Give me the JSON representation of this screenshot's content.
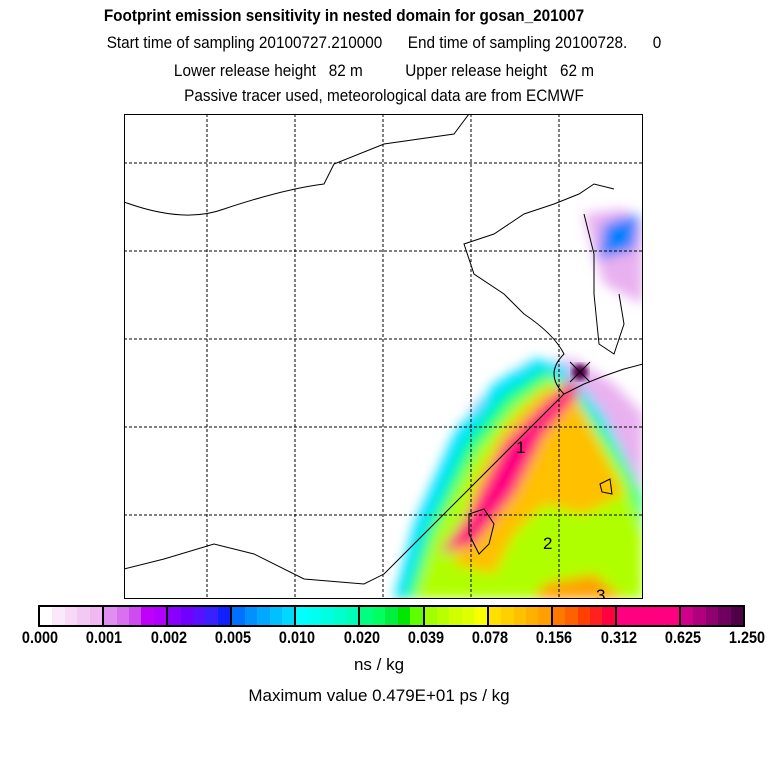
{
  "header": {
    "title": "Footprint emission sensitivity in nested domain for gosan_201007",
    "sampling": "Start time of sampling 20100727.210000      End time of sampling 20100728.      0",
    "release": "Lower release height   82 m          Upper release height   62 m",
    "tracer": "Passive tracer used, meteorological data are from ECMWF"
  },
  "map": {
    "contour_labels": [
      "1",
      "2",
      "3"
    ]
  },
  "colorbar": {
    "ticks": [
      "0.000",
      "0.001",
      "0.002",
      "0.005",
      "0.010",
      "0.020",
      "0.039",
      "0.078",
      "0.156",
      "0.312",
      "0.625",
      "1.250"
    ],
    "segments": [
      [
        "#ffffff",
        "#fbe8fb",
        "#f7d8f7",
        "#f3c8f3",
        "#efb8ef"
      ],
      [
        "#e08ff0",
        "#d870f0",
        "#cc4cf0",
        "#c000f8",
        "#b000ff"
      ],
      [
        "#8a00ff",
        "#7000ff",
        "#5a10ff",
        "#3a20ff",
        "#1020ff"
      ],
      [
        "#0070ff",
        "#0090ff",
        "#00a8ff",
        "#00c0ff",
        "#00d8ff"
      ],
      [
        "#00ffff",
        "#00fff0",
        "#00ffe0",
        "#00ffcc",
        "#00ffb8"
      ],
      [
        "#00ff80",
        "#00ff60",
        "#00f040",
        "#00e800",
        "#60ff00"
      ],
      [
        "#a0ff00",
        "#b8ff00",
        "#d0ff00",
        "#e0ff00",
        "#f8ff00"
      ],
      [
        "#ffe000",
        "#ffd000",
        "#ffc000",
        "#ffb000",
        "#ffa000"
      ],
      [
        "#ff7800",
        "#ff6000",
        "#ff4000",
        "#ff2020",
        "#ff0040"
      ],
      [
        "#ff0080",
        "#ff0080",
        "#ff0080",
        "#ff0080",
        "#ff0080"
      ],
      [
        "#d0008c",
        "#b00080",
        "#900070",
        "#700060",
        "#500048"
      ]
    ],
    "units": "ns / kg",
    "max_value": "Maximum value  0.479E+01 ps / kg"
  }
}
